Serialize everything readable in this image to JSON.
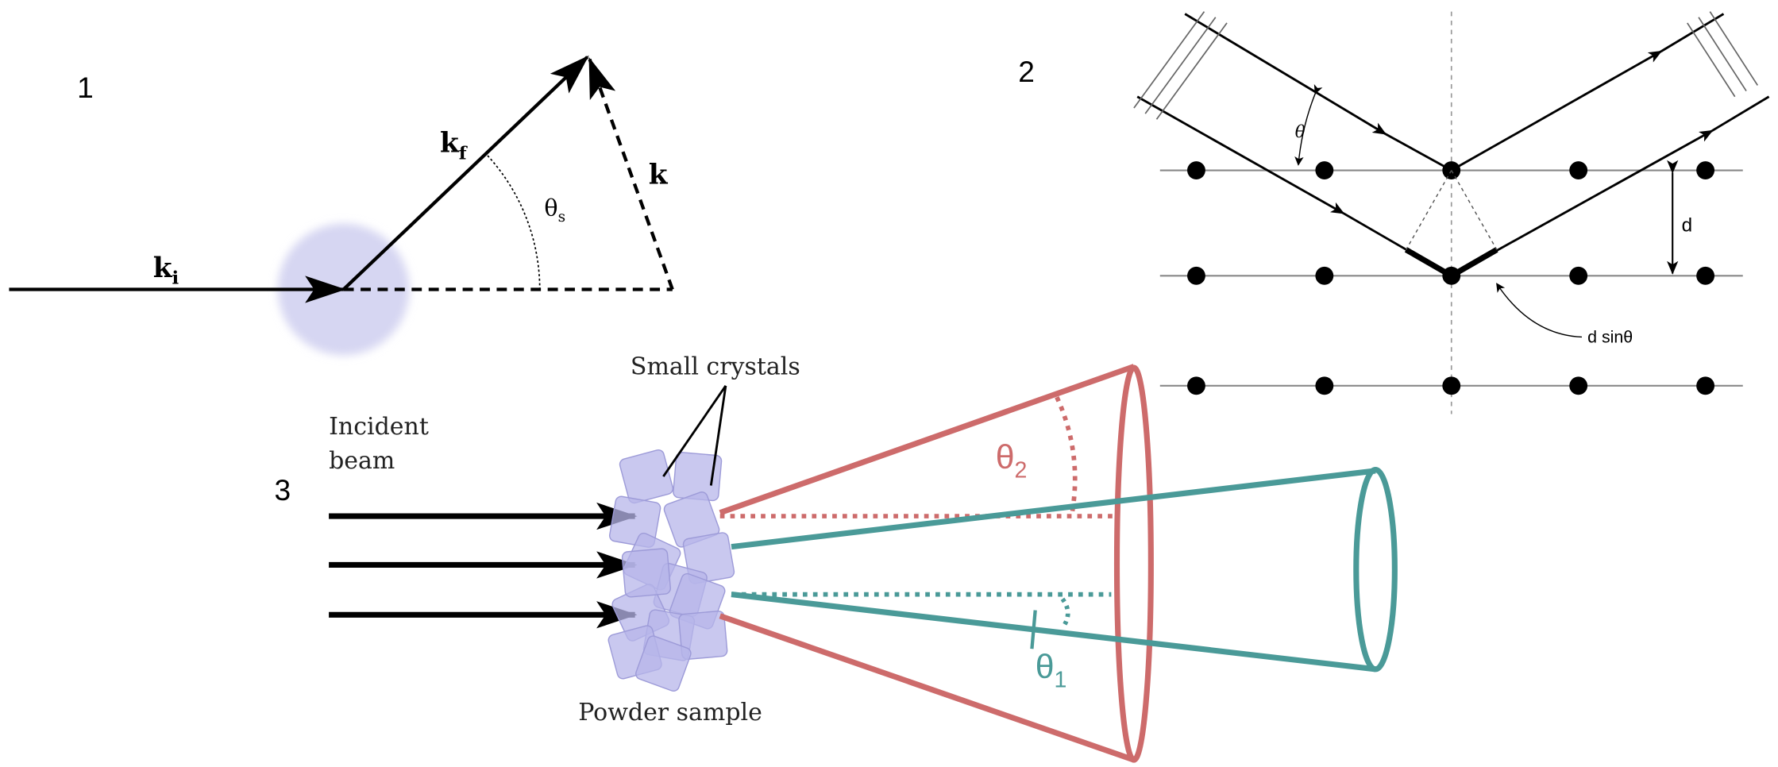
{
  "panel_labels": [
    "1",
    "2",
    "3"
  ],
  "panel1": {
    "k_incident": {
      "main": "k",
      "sub": "i"
    },
    "k_final": {
      "main": "k",
      "sub": "f"
    },
    "k_transfer": "k",
    "angle": {
      "main": "θ",
      "sub": "s"
    }
  },
  "panel2": {
    "angle": "θ",
    "spacing": "d",
    "path_difference": "d sinθ"
  },
  "panel3": {
    "crystals": "Small crystals",
    "beam": [
      "Incident",
      "beam"
    ],
    "sample": "Powder sample",
    "angle2": {
      "main": "θ",
      "sub": "2"
    },
    "angle1": {
      "main": "θ",
      "sub": "1"
    }
  }
}
